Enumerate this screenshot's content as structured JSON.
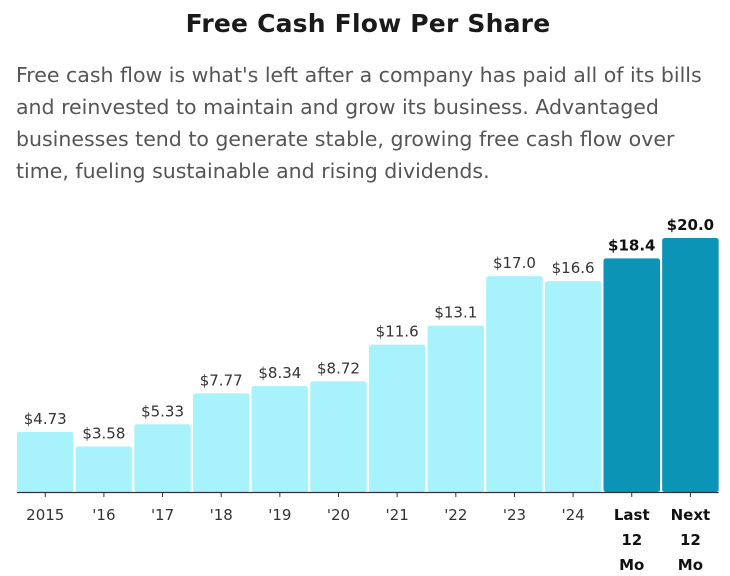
{
  "chart_data": {
    "type": "bar",
    "title": "Free Cash Flow Per Share",
    "subtitle": "Free cash flow is what's left after a company has paid all of its bills and reinvested to maintain and grow its business. Advantaged businesses tend to generate stable, growing free cash flow over time, fueling sustainable and rising dividends.",
    "categories": [
      "2015",
      "'16",
      "'17",
      "'18",
      "'19",
      "'20",
      "'21",
      "'22",
      "'23",
      "'24",
      "Last 12 Mo",
      "Next 12 Mo"
    ],
    "values": [
      4.73,
      3.58,
      5.33,
      7.77,
      8.34,
      8.72,
      11.6,
      13.1,
      17.0,
      16.6,
      18.4,
      20.0
    ],
    "labels": [
      "$4.73",
      "$3.58",
      "$5.33",
      "$7.77",
      "$8.34",
      "$8.72",
      "$11.6",
      "$13.1",
      "$17.0",
      "$16.6",
      "$18.4",
      "$20.0"
    ],
    "highlighted": [
      false,
      false,
      false,
      false,
      false,
      false,
      false,
      false,
      false,
      false,
      true,
      true
    ],
    "ylim": [
      0,
      20
    ],
    "grid": false,
    "xlabel": "",
    "ylabel": "",
    "colors": {
      "normal": "#a8f2fb",
      "highlight": "#0b94b5",
      "axis": "#333333"
    }
  }
}
